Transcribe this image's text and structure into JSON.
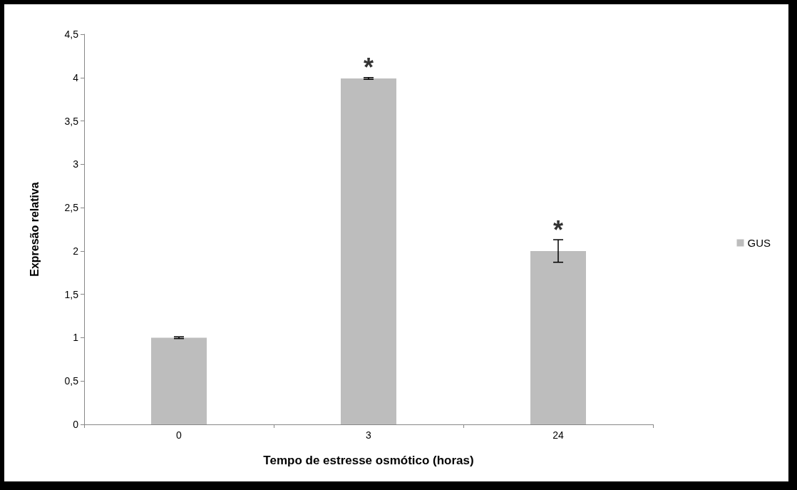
{
  "chart_data": {
    "type": "bar",
    "xlabel": "Tempo de estresse osmótico (horas)",
    "ylabel": "Expresão relativa",
    "categories": [
      "0",
      "3",
      "24"
    ],
    "series": [
      {
        "name": "GUS",
        "color": "#bdbdbd",
        "values": [
          1.0,
          3.99,
          2.0
        ],
        "errors": [
          0.01,
          0.01,
          0.13
        ]
      }
    ],
    "ylim": [
      0,
      4.5
    ],
    "yticks": [
      {
        "value": 0,
        "label": "0"
      },
      {
        "value": 0.5,
        "label": "0,5"
      },
      {
        "value": 1,
        "label": "1"
      },
      {
        "value": 1.5,
        "label": "1,5"
      },
      {
        "value": 2,
        "label": "2"
      },
      {
        "value": 2.5,
        "label": "2,5"
      },
      {
        "value": 3,
        "label": "3"
      },
      {
        "value": 3.5,
        "label": "3,5"
      },
      {
        "value": 4,
        "label": "4"
      },
      {
        "value": 4.5,
        "label": "4,5"
      }
    ],
    "annotations": [
      {
        "text": "*",
        "x": "3",
        "y": 3.99
      },
      {
        "text": "*",
        "x": "24",
        "y": 2.0
      }
    ],
    "grid": false,
    "legend": "right"
  }
}
